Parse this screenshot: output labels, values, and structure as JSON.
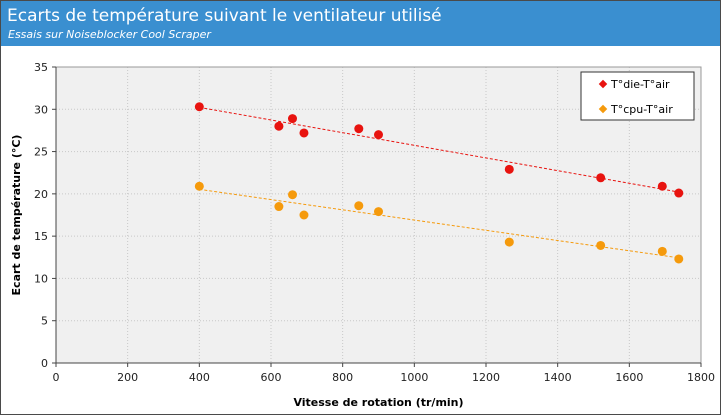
{
  "header": {
    "title": "Ecarts de température suivant le ventilateur utilisé",
    "subtitle": "Essais sur Noiseblocker Cool Scraper"
  },
  "chart_data": {
    "type": "scatter",
    "xlabel": "Vitesse de rotation (tr/min)",
    "ylabel": "Ecart de température (°C)",
    "xlim": [
      0,
      1800
    ],
    "ylim": [
      0,
      35
    ],
    "xticks": [
      0,
      200,
      400,
      600,
      800,
      1000,
      1200,
      1400,
      1600,
      1800
    ],
    "yticks": [
      0,
      5,
      10,
      15,
      20,
      25,
      30,
      35
    ],
    "grid": true,
    "trendlines": true,
    "legend_position": "top-right",
    "series": [
      {
        "name": "T°die-T°air",
        "color": "#e8130f",
        "x": [
          400,
          622,
          660,
          692,
          845,
          900,
          1265,
          1520,
          1692,
          1738
        ],
        "y": [
          30.3,
          28.0,
          28.9,
          27.2,
          27.7,
          27.0,
          22.9,
          21.9,
          20.9,
          20.1
        ]
      },
      {
        "name": "T°cpu-T°air",
        "color": "#f59a0c",
        "x": [
          400,
          622,
          660,
          692,
          845,
          900,
          1265,
          1520,
          1692,
          1738
        ],
        "y": [
          20.9,
          18.5,
          19.9,
          17.5,
          18.6,
          17.9,
          14.3,
          13.9,
          13.2,
          12.3
        ]
      }
    ]
  }
}
